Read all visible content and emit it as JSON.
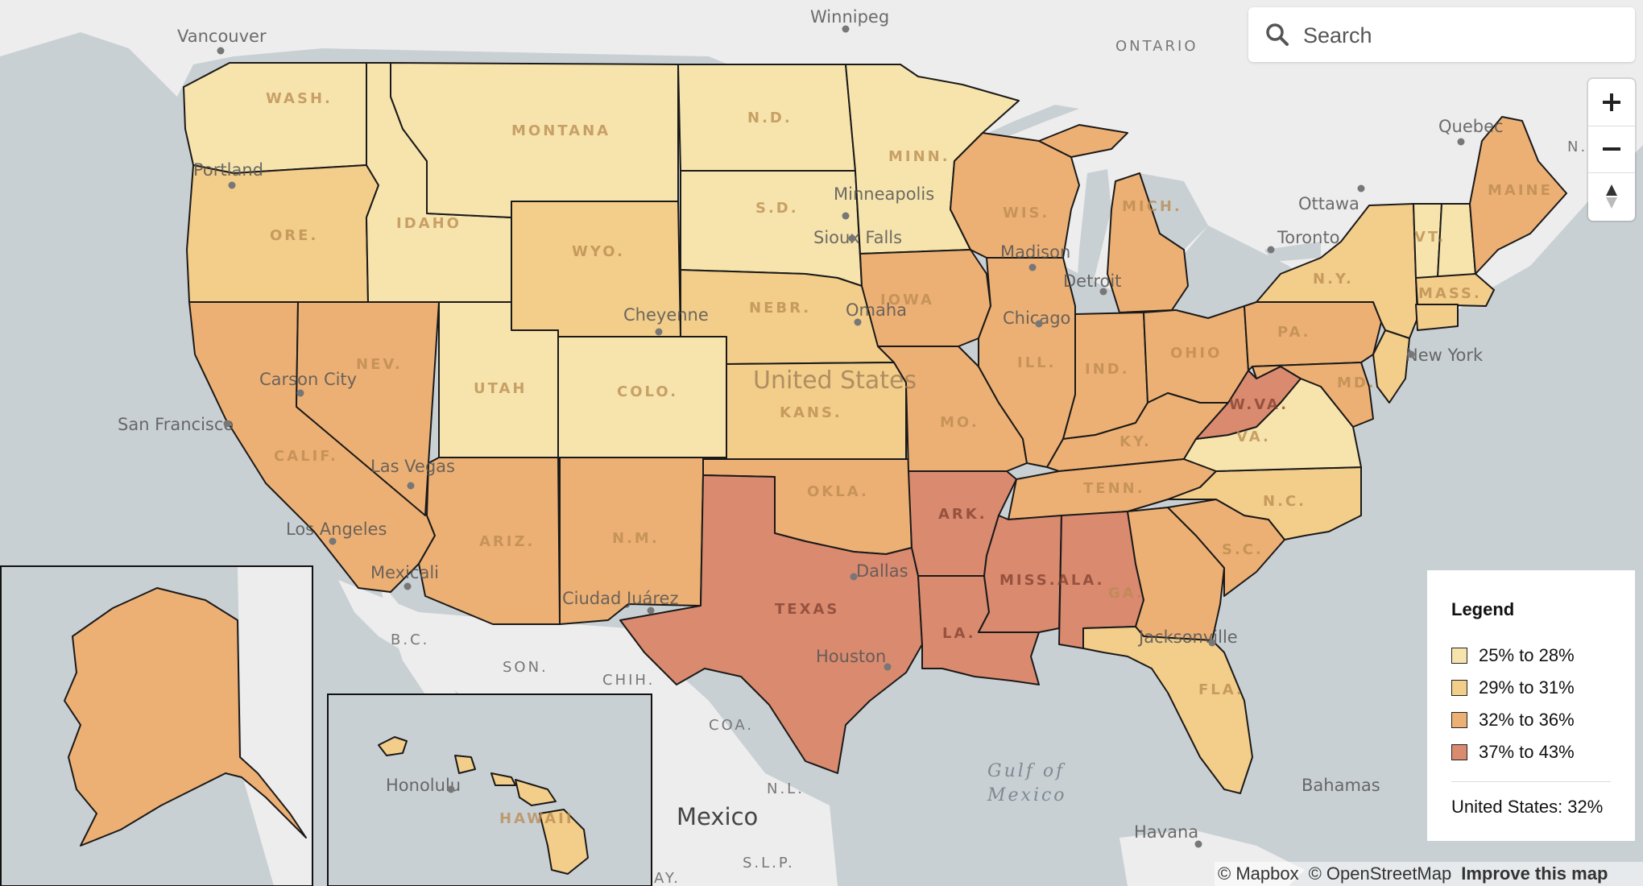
{
  "search": {
    "placeholder": "Search"
  },
  "zoom": {
    "in_label": "+",
    "out_label": "−",
    "compass_label": "N"
  },
  "legend": {
    "title": "Legend",
    "items": [
      {
        "label": "25% to 28%",
        "color": "#f7e4ad"
      },
      {
        "label": "29% to 31%",
        "color": "#f3cd8a"
      },
      {
        "label": "32% to 36%",
        "color": "#edb074"
      },
      {
        "label": "37% to 43%",
        "color": "#d98a6f"
      }
    ],
    "total": "United States: 32%"
  },
  "attribution": {
    "mapbox": "© Mapbox",
    "osm": "© OpenStreetMap",
    "improve": "Improve this map"
  },
  "states": [
    {
      "abbr": "WASH.",
      "bin": 0
    },
    {
      "abbr": "ORE.",
      "bin": 1
    },
    {
      "abbr": "CALIF.",
      "bin": 2
    },
    {
      "abbr": "NEV.",
      "bin": 2
    },
    {
      "abbr": "IDAHO",
      "bin": 0
    },
    {
      "abbr": "MONTANA",
      "bin": 0
    },
    {
      "abbr": "WYO.",
      "bin": 1
    },
    {
      "abbr": "UTAH",
      "bin": 0
    },
    {
      "abbr": "COLO.",
      "bin": 0
    },
    {
      "abbr": "ARIZ.",
      "bin": 2
    },
    {
      "abbr": "N.M.",
      "bin": 2
    },
    {
      "abbr": "N.D.",
      "bin": 0
    },
    {
      "abbr": "S.D.",
      "bin": 0
    },
    {
      "abbr": "NEBR.",
      "bin": 1
    },
    {
      "abbr": "KANS.",
      "bin": 1
    },
    {
      "abbr": "OKLA.",
      "bin": 2
    },
    {
      "abbr": "TEXAS",
      "bin": 3
    },
    {
      "abbr": "MINN.",
      "bin": 0
    },
    {
      "abbr": "IOWA",
      "bin": 2
    },
    {
      "abbr": "MO.",
      "bin": 2
    },
    {
      "abbr": "ARK.",
      "bin": 3
    },
    {
      "abbr": "LA.",
      "bin": 3
    },
    {
      "abbr": "WIS.",
      "bin": 2
    },
    {
      "abbr": "ILL.",
      "bin": 2
    },
    {
      "abbr": "MICH.",
      "bin": 2
    },
    {
      "abbr": "IND.",
      "bin": 2
    },
    {
      "abbr": "OHIO",
      "bin": 2
    },
    {
      "abbr": "KY.",
      "bin": 2
    },
    {
      "abbr": "TENN.",
      "bin": 2
    },
    {
      "abbr": "MISS.",
      "bin": 3
    },
    {
      "abbr": "ALA.",
      "bin": 3
    },
    {
      "abbr": "GA.",
      "bin": 2
    },
    {
      "abbr": "FLA.",
      "bin": 1
    },
    {
      "abbr": "S.C.",
      "bin": 2
    },
    {
      "abbr": "N.C.",
      "bin": 1
    },
    {
      "abbr": "VA.",
      "bin": 0
    },
    {
      "abbr": "W.VA.",
      "bin": 3
    },
    {
      "abbr": "PA.",
      "bin": 2
    },
    {
      "abbr": "N.Y.",
      "bin": 1
    },
    {
      "abbr": "VT.",
      "bin": 0
    },
    {
      "abbr": "MAINE",
      "bin": 2
    },
    {
      "abbr": "MASS.",
      "bin": 1
    },
    {
      "abbr": "MD.",
      "bin": 2
    },
    {
      "abbr": "HAWAII",
      "bin": 1
    }
  ],
  "cities": [
    "Vancouver",
    "Portland",
    "San Francisco",
    "Carson City",
    "Las Vegas",
    "Los Angeles",
    "Mexicali",
    "Cheyenne",
    "Ciudad Juárez",
    "Omaha",
    "Sioux Falls",
    "Minneapolis",
    "Madison",
    "Chicago",
    "Detroit",
    "Toronto",
    "Ottawa",
    "Quebec",
    "New York",
    "Dallas",
    "Houston",
    "Jacksonville",
    "Havana",
    "Honolulu",
    "Winnipeg",
    "Bahamas"
  ],
  "places": {
    "us": "United States",
    "mexico": "Mexico",
    "gulf": [
      "Gulf of",
      "Mexico"
    ],
    "regions": [
      "ONTARIO",
      "B.C.",
      "SON.",
      "CHIH.",
      "COA.",
      "N.L.",
      "S.L.P.",
      "AY.",
      "N.E."
    ]
  }
}
